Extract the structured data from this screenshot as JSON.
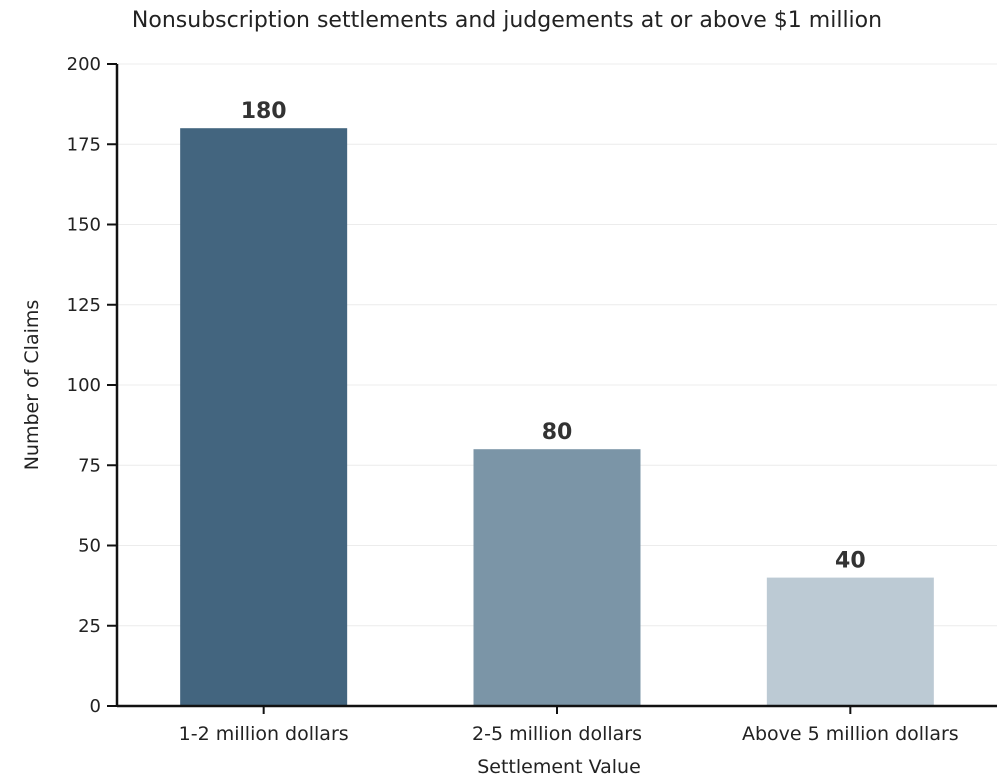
{
  "chart_data": {
    "type": "bar",
    "title": "Nonsubscription settlements and judgements at or above $1 million",
    "xlabel": "Settlement Value",
    "ylabel": "Number of Claims",
    "categories": [
      "1-2 million dollars",
      "2-5 million dollars",
      "Above 5 million dollars"
    ],
    "values": [
      180,
      80,
      40
    ],
    "value_labels": [
      "180",
      "80",
      "40"
    ],
    "ylim": [
      0,
      200
    ],
    "yticks": [
      0,
      25,
      50,
      75,
      100,
      125,
      150,
      175,
      200
    ],
    "grid": true,
    "legend": "none",
    "colors": [
      "#43657f",
      "#7b95a7",
      "#bccad4"
    ]
  }
}
